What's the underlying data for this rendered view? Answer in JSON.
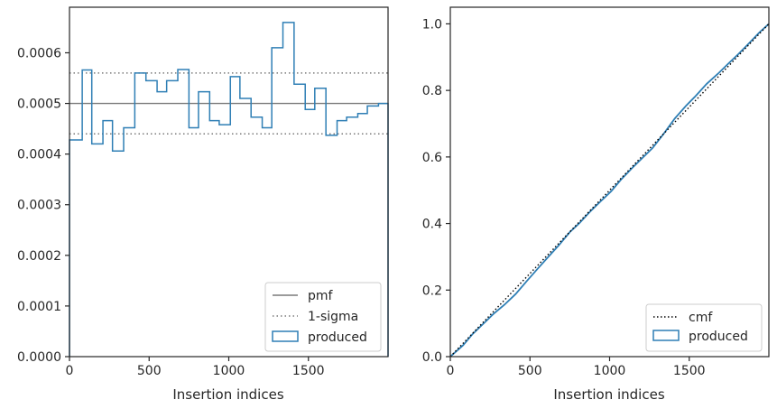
{
  "colors": {
    "step": "#2f7fb5",
    "pmf_line": "#7a7a7a",
    "sigma_line": "#7a7a7a",
    "cmf_line": "#000000",
    "axes": "#262626"
  },
  "chart_data": [
    {
      "type": "line",
      "subtype": "step-histogram",
      "xlabel": "Insertion indices",
      "ylabel": "",
      "xlim": [
        0,
        2000
      ],
      "ylim": [
        0,
        0.00069
      ],
      "xticks": [
        0,
        500,
        1000,
        1500
      ],
      "xtick_labels": [
        "0",
        "500",
        "1000",
        "1500"
      ],
      "yticks": [
        0,
        0.0001,
        0.0002,
        0.0003,
        0.0004,
        0.0005,
        0.0006
      ],
      "ytick_labels": [
        "0.0000",
        "0.0001",
        "0.0002",
        "0.0003",
        "0.0004",
        "0.0005",
        "0.0006"
      ],
      "grid": false,
      "legend_position": "bottom-right",
      "legend": [
        "pmf",
        "1-sigma",
        "produced"
      ],
      "pmf": 0.0005,
      "sigma_band": [
        0.00044,
        0.00056
      ],
      "bin_edges": [
        0,
        80,
        140,
        210,
        270,
        340,
        410,
        480,
        550,
        610,
        680,
        750,
        810,
        880,
        940,
        1010,
        1070,
        1140,
        1210,
        1270,
        1340,
        1410,
        1480,
        1540,
        1610,
        1680,
        1740,
        1810,
        1870,
        1940,
        2000
      ],
      "bin_values": [
        0.000428,
        0.000566,
        0.00042,
        0.000466,
        0.000406,
        0.000452,
        0.00056,
        0.000545,
        0.000523,
        0.000545,
        0.000567,
        0.000452,
        0.000523,
        0.000466,
        0.000458,
        0.000553,
        0.00051,
        0.000473,
        0.000452,
        0.00061,
        0.00066,
        0.000538,
        0.000488,
        0.00053,
        0.000437,
        0.000466,
        0.000473,
        0.00048,
        0.000495,
        0.0005
      ]
    },
    {
      "type": "line",
      "xlabel": "Insertion indices",
      "ylabel": "",
      "xlim": [
        0,
        2000
      ],
      "ylim": [
        0,
        1.05
      ],
      "xticks": [
        0,
        500,
        1000,
        1500
      ],
      "xtick_labels": [
        "0",
        "500",
        "1000",
        "1500"
      ],
      "yticks": [
        0,
        0.2,
        0.4,
        0.6,
        0.8,
        1.0
      ],
      "ytick_labels": [
        "0.0",
        "0.2",
        "0.4",
        "0.6",
        "0.8",
        "1.0"
      ],
      "grid": false,
      "legend_position": "bottom-right",
      "legend": [
        "cmf",
        "produced"
      ],
      "cmf": {
        "x": [
          0,
          2000
        ],
        "y": [
          0,
          1.0
        ]
      },
      "produced": {
        "x": [
          0,
          80,
          140,
          210,
          270,
          340,
          410,
          480,
          550,
          610,
          680,
          750,
          810,
          880,
          940,
          1010,
          1070,
          1140,
          1210,
          1270,
          1340,
          1410,
          1480,
          1540,
          1610,
          1680,
          1740,
          1810,
          1870,
          1940,
          2000
        ],
        "y": [
          0,
          0.034,
          0.068,
          0.1,
          0.128,
          0.156,
          0.188,
          0.227,
          0.265,
          0.297,
          0.334,
          0.374,
          0.401,
          0.437,
          0.465,
          0.497,
          0.531,
          0.566,
          0.599,
          0.627,
          0.67,
          0.716,
          0.754,
          0.783,
          0.82,
          0.85,
          0.878,
          0.91,
          0.939,
          0.974,
          1.0
        ]
      }
    }
  ]
}
